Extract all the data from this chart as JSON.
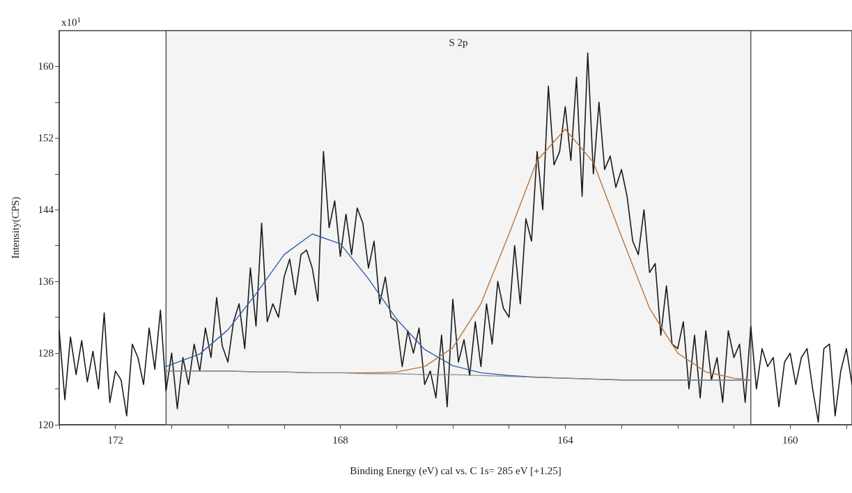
{
  "chart_data": {
    "type": "line",
    "xlabel": "Binding Energy (eV) cal vs. C 1s= 285 eV [+1.25]",
    "ylabel": "Intensity(CPS)",
    "annotations": [
      "x10$^{1}$"
    ],
    "xlim": [
      173,
      158.9
    ],
    "ylim": [
      120,
      164
    ],
    "xticks": [
      {
        "value": 173,
        "label": null
      },
      172,
      {
        "value": 171,
        "label": null
      },
      {
        "value": 170,
        "label": null
      },
      {
        "value": 169,
        "label": null
      },
      168,
      {
        "value": 167,
        "label": null
      },
      {
        "value": 166,
        "label": null
      },
      {
        "value": 165,
        "label": null
      },
      164,
      {
        "value": 163,
        "label": null
      },
      {
        "value": 162,
        "label": null
      },
      {
        "value": 161,
        "label": null
      },
      160,
      {
        "value": 159,
        "label": null
      }
    ],
    "yticks": [
      120,
      {
        "value": 124,
        "label": null
      },
      128,
      {
        "value": 132,
        "label": null
      },
      136,
      {
        "value": 140,
        "label": null
      },
      144,
      {
        "value": 148,
        "label": null
      },
      152,
      {
        "value": 156,
        "label": null
      },
      160
    ],
    "grid": false,
    "marker": "none",
    "bands": [
      {
        "axis": "x",
        "from": 171.1,
        "to": 160.7,
        "label": "S 2p",
        "color": "#f4f4f4"
      }
    ],
    "series": [
      {
        "color": "#1a1a1a",
        "line_style": "solid",
        "x": [
          173.0,
          172.9,
          172.8,
          172.7,
          172.6,
          172.5,
          172.4,
          172.3,
          172.2,
          172.1,
          172.0,
          171.9,
          171.8,
          171.7,
          171.6,
          171.5,
          171.4,
          171.3,
          171.2,
          171.1,
          171.0,
          170.9,
          170.8,
          170.7,
          170.6,
          170.5,
          170.4,
          170.3,
          170.2,
          170.1,
          170.0,
          169.9,
          169.8,
          169.7,
          169.6,
          169.5,
          169.4,
          169.3,
          169.2,
          169.1,
          169.0,
          168.9,
          168.8,
          168.7,
          168.6,
          168.5,
          168.4,
          168.3,
          168.2,
          168.1,
          168.0,
          167.9,
          167.8,
          167.7,
          167.6,
          167.5,
          167.4,
          167.3,
          167.2,
          167.1,
          167.0,
          166.9,
          166.8,
          166.7,
          166.6,
          166.5,
          166.4,
          166.3,
          166.2,
          166.1,
          166.0,
          165.9,
          165.8,
          165.7,
          165.6,
          165.5,
          165.4,
          165.3,
          165.2,
          165.1,
          165.0,
          164.9,
          164.8,
          164.7,
          164.6,
          164.5,
          164.4,
          164.3,
          164.2,
          164.1,
          164.0,
          163.9,
          163.8,
          163.7,
          163.6,
          163.5,
          163.4,
          163.3,
          163.2,
          163.1,
          163.0,
          162.9,
          162.8,
          162.7,
          162.6,
          162.5,
          162.4,
          162.3,
          162.2,
          162.1,
          162.0,
          161.9,
          161.8,
          161.7,
          161.6,
          161.5,
          161.4,
          161.3,
          161.2,
          161.1,
          161.0,
          160.9,
          160.8,
          160.7,
          160.6,
          160.5,
          160.4,
          160.3,
          160.2,
          160.1,
          160.0,
          159.9,
          159.8,
          159.7,
          159.6,
          159.5,
          159.4,
          159.3,
          159.2,
          159.1,
          159.0,
          158.9
        ],
        "values": [
          130.5,
          122.8,
          129.8,
          125.6,
          129.4,
          124.8,
          128.2,
          124.0,
          132.5,
          122.5,
          126.0,
          125.0,
          121.0,
          129.0,
          127.5,
          124.5,
          130.8,
          126.2,
          132.8,
          123.8,
          128.0,
          121.8,
          127.5,
          124.5,
          129.0,
          126.0,
          130.8,
          127.5,
          134.2,
          128.8,
          127.0,
          131.5,
          133.5,
          128.5,
          137.5,
          131.0,
          142.5,
          131.5,
          133.5,
          132.0,
          136.5,
          138.5,
          134.5,
          139.0,
          139.5,
          137.5,
          133.8,
          150.5,
          142.0,
          145.0,
          138.8,
          143.5,
          139.0,
          144.2,
          142.5,
          137.5,
          140.5,
          133.5,
          136.5,
          132.0,
          131.5,
          126.5,
          130.5,
          128.0,
          130.8,
          124.5,
          126.0,
          123.0,
          130.0,
          122.0,
          134.0,
          127.0,
          129.5,
          125.5,
          131.5,
          126.5,
          133.5,
          129.0,
          136.0,
          133.0,
          132.0,
          140.0,
          133.5,
          143.0,
          140.5,
          150.5,
          144.0,
          157.8,
          149.0,
          150.5,
          155.5,
          149.5,
          158.8,
          145.5,
          161.5,
          148.0,
          156.0,
          148.5,
          150.0,
          146.5,
          148.5,
          145.5,
          140.5,
          139.0,
          144.0,
          137.0,
          138.0,
          130.0,
          135.5,
          129.0,
          128.5,
          131.5,
          124.0,
          130.0,
          123.0,
          130.5,
          125.0,
          127.5,
          122.5,
          130.5,
          127.5,
          129.0,
          122.5,
          131.0,
          124.0,
          128.5,
          126.5,
          127.5,
          122.0,
          127.0,
          128.0,
          124.5,
          127.5,
          128.5,
          124.0,
          120.3,
          128.5,
          129.0,
          121.0,
          126.0,
          128.5,
          124.5
        ]
      },
      {
        "color": "#888888",
        "line_style": "dotted",
        "x": [
          171.1,
          170.5,
          170.0,
          169.5,
          169.0,
          168.5,
          168.0,
          167.5,
          167.0,
          166.5,
          166.0,
          165.5,
          165.0,
          164.5,
          164.0,
          163.5,
          163.0,
          162.5,
          162.0,
          161.5,
          161.0,
          160.7
        ],
        "values": [
          126.0,
          126.0,
          126.0,
          125.9,
          125.9,
          125.8,
          125.8,
          125.7,
          125.7,
          125.6,
          125.6,
          125.5,
          125.4,
          125.3,
          125.2,
          125.1,
          125.0,
          125.0,
          125.0,
          125.0,
          125.0,
          125.0
        ]
      },
      {
        "color": "#2f5fa8",
        "line_style": "solid",
        "x": [
          171.1,
          170.5,
          170.0,
          169.5,
          169.0,
          168.5,
          168.0,
          167.5,
          167.0,
          166.5,
          166.0,
          165.5,
          165.0,
          164.5,
          164.0,
          163.5,
          163.0,
          162.5,
          162.0,
          161.5,
          161.0,
          160.7
        ],
        "values": [
          126.5,
          127.9,
          130.6,
          134.6,
          139.0,
          141.3,
          140.2,
          136.3,
          131.8,
          128.4,
          126.6,
          125.8,
          125.5,
          125.3,
          125.2,
          125.1,
          125.0,
          125.0,
          125.0,
          125.0,
          125.0,
          125.0
        ]
      },
      {
        "color": "#b8743a",
        "line_style": "solid",
        "x": [
          171.1,
          170.5,
          170.0,
          169.5,
          169.0,
          168.5,
          168.0,
          167.5,
          167.0,
          166.5,
          166.0,
          165.5,
          165.0,
          164.5,
          164.0,
          163.5,
          163.0,
          162.5,
          162.0,
          161.5,
          161.0,
          160.7
        ],
        "values": [
          126.0,
          126.0,
          126.0,
          125.9,
          125.9,
          125.8,
          125.8,
          125.8,
          125.9,
          126.5,
          128.6,
          133.5,
          141.3,
          149.5,
          153.0,
          149.3,
          141.0,
          133.0,
          128.0,
          125.9,
          125.2,
          125.0
        ]
      }
    ]
  }
}
